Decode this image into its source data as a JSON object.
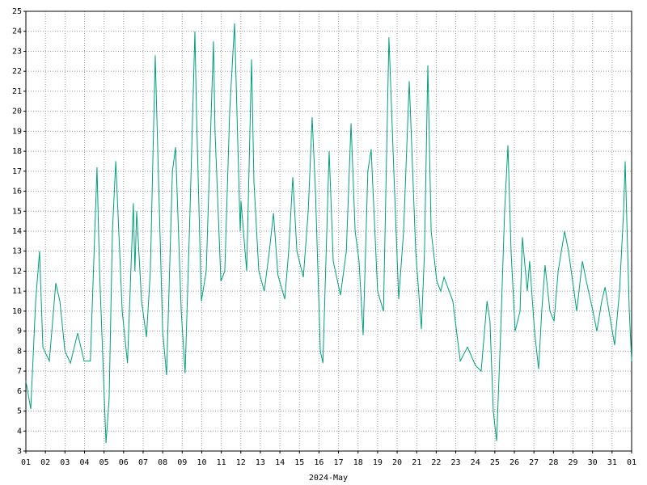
{
  "chart_data": {
    "type": "line",
    "x_label": "2024-May",
    "x": [
      0,
      0.25,
      0.5,
      0.7,
      0.87,
      1.2,
      1.53,
      1.74,
      2.0,
      2.28,
      2.65,
      2.98,
      3.3,
      3.64,
      3.77,
      4.1,
      4.26,
      4.43,
      4.6,
      4.93,
      5.2,
      5.5,
      5.58,
      5.67,
      5.92,
      6.17,
      6.37,
      6.62,
      6.75,
      7.0,
      7.2,
      7.5,
      7.66,
      7.95,
      8.15,
      8.4,
      8.65,
      8.73,
      8.98,
      9.23,
      9.6,
      9.68,
      9.98,
      10.18,
      10.43,
      10.68,
      10.8,
      10.97,
      11.01,
      11.3,
      11.55,
      11.67,
      11.92,
      12.2,
      12.46,
      12.67,
      12.9,
      13.25,
      13.45,
      13.66,
      13.87,
      14.2,
      14.45,
      14.65,
      14.82,
      15.07,
      15.2,
      15.4,
      15.52,
      15.73,
      16.1,
      16.4,
      16.64,
      16.85,
      17.05,
      17.26,
      17.5,
      17.67,
      18.0,
      18.3,
      18.58,
      18.83,
      19.08,
      19.33,
      19.62,
      19.95,
      20.24,
      20.4,
      20.57,
      20.74,
      21.03,
      21.23,
      21.4,
      21.85,
      22.23,
      22.6,
      23.0,
      23.3,
      23.6,
      23.75,
      23.92,
      24.09,
      24.3,
      24.5,
      24.67,
      24.83,
      25.04,
      25.29,
      25.41,
      25.66,
      25.78,
      26.03,
      26.24,
      26.4,
      26.57,
      26.82,
      27.03,
      27.24,
      27.57,
      27.77,
      28.19,
      28.48,
      28.68,
      29.02,
      29.22,
      29.47,
      29.64,
      29.84,
      30.13,
      30.38,
      30.59,
      30.67,
      30.88,
      31.0
    ],
    "series": [
      {
        "color": "#00a07a",
        "values": [
          6.5,
          5.1,
          10.5,
          13,
          8.2,
          7.5,
          11.4,
          10.5,
          8,
          7.4,
          8.9,
          7.5,
          7.5,
          17.2,
          12,
          3.4,
          5.6,
          14,
          17.5,
          10,
          7.4,
          15.4,
          12,
          15,
          10.5,
          8.7,
          12,
          22.8,
          18,
          9,
          6.8,
          17,
          18.2,
          10,
          6.9,
          15,
          24,
          20,
          10.5,
          12,
          23.5,
          19,
          11.5,
          12,
          20,
          24.4,
          20,
          14,
          15.5,
          12,
          22.6,
          16.5,
          12,
          11,
          13,
          14.9,
          11.8,
          10.6,
          13,
          16.7,
          13,
          11.7,
          15,
          19.7,
          16,
          8,
          7.4,
          14,
          18,
          12.5,
          10.8,
          13,
          19.4,
          14,
          12.5,
          8.8,
          17,
          18.1,
          11,
          10,
          23.7,
          17,
          10.6,
          14,
          21.5,
          13,
          9.1,
          13,
          22.3,
          14,
          11.5,
          11,
          11.7,
          10.5,
          7.5,
          8.2,
          7.3,
          7,
          10.5,
          9.5,
          5,
          3.5,
          9,
          15,
          18.3,
          13,
          9,
          10,
          13.7,
          11,
          12.5,
          9,
          7.1,
          10,
          12.3,
          10,
          9.5,
          12,
          14,
          13,
          10,
          12.5,
          11.5,
          10,
          9,
          10.5,
          11.2,
          10,
          8.3,
          11,
          15,
          17.5,
          10,
          7.5
        ]
      }
    ],
    "xlim": [
      0,
      31
    ],
    "xticks": [
      {
        "value": 0,
        "label": "01"
      },
      {
        "value": 1,
        "label": "02"
      },
      {
        "value": 2,
        "label": "03"
      },
      {
        "value": 3,
        "label": "04"
      },
      {
        "value": 4,
        "label": "05"
      },
      {
        "value": 5,
        "label": "06"
      },
      {
        "value": 6,
        "label": "07"
      },
      {
        "value": 7,
        "label": "08"
      },
      {
        "value": 8,
        "label": "09"
      },
      {
        "value": 9,
        "label": "10"
      },
      {
        "value": 10,
        "label": "11"
      },
      {
        "value": 11,
        "label": "12"
      },
      {
        "value": 12,
        "label": "13"
      },
      {
        "value": 13,
        "label": "14"
      },
      {
        "value": 14,
        "label": "15"
      },
      {
        "value": 15,
        "label": "16"
      },
      {
        "value": 16,
        "label": "17"
      },
      {
        "value": 17,
        "label": "18"
      },
      {
        "value": 18,
        "label": "19"
      },
      {
        "value": 19,
        "label": "20"
      },
      {
        "value": 20,
        "label": "21"
      },
      {
        "value": 21,
        "label": "22"
      },
      {
        "value": 22,
        "label": "23"
      },
      {
        "value": 23,
        "label": "24"
      },
      {
        "value": 24,
        "label": "25"
      },
      {
        "value": 25,
        "label": "26"
      },
      {
        "value": 26,
        "label": "27"
      },
      {
        "value": 27,
        "label": "28"
      },
      {
        "value": 28,
        "label": "29"
      },
      {
        "value": 29,
        "label": "30"
      },
      {
        "value": 30,
        "label": "31"
      },
      {
        "value": 31,
        "label": "01"
      }
    ],
    "ylim": [
      3,
      25
    ],
    "yticks": [
      3,
      4,
      5,
      6,
      7,
      8,
      9,
      10,
      11,
      12,
      13,
      14,
      15,
      16,
      17,
      18,
      19,
      20,
      21,
      22,
      23,
      24,
      25
    ],
    "grid": true
  }
}
